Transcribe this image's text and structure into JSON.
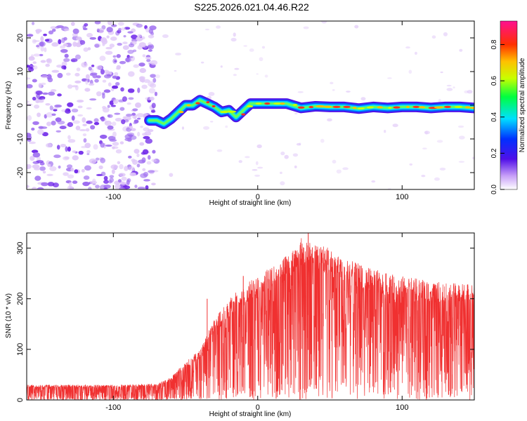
{
  "title": "S225.2026.021.04.46.R22",
  "colors": {
    "snr_line": "#f03030",
    "scatter_low": "#e0c8f8",
    "scatter_mid": "#a070f0",
    "scatter_high": "#6a20e8"
  },
  "chart_data": [
    {
      "type": "heatmap",
      "name": "spectrogram",
      "title": "S225.2026.021.04.46.R22",
      "xlabel": "Height of straight line (km)",
      "ylabel": "Frequency (Hz)",
      "xlim": [
        -160,
        150
      ],
      "ylim": [
        -25,
        25
      ],
      "xticks": [
        -100,
        0,
        100
      ],
      "yticks": [
        -20,
        -10,
        0,
        10,
        20
      ],
      "noise_region_x": [
        -160,
        -70
      ],
      "ridge": {
        "x": [
          -75,
          -70,
          -65,
          -60,
          -55,
          -50,
          -45,
          -40,
          -35,
          -30,
          -25,
          -20,
          -15,
          -10,
          -5,
          0,
          10,
          20,
          30,
          40,
          50,
          60,
          70,
          80,
          90,
          100,
          110,
          120,
          130,
          140,
          150
        ],
        "y": [
          -4.5,
          -4.5,
          -5.5,
          -4,
          -2,
          0,
          0,
          1.5,
          0.5,
          -0.5,
          -2,
          -1.5,
          -3.5,
          -1.5,
          0.5,
          0.5,
          0.5,
          0.5,
          -0.8,
          -0.3,
          -0.5,
          -0.5,
          -1,
          -0.5,
          -0.8,
          -0.5,
          -0.5,
          -0.8,
          -0.5,
          -0.5,
          -0.8
        ]
      },
      "colorbar": {
        "label": "Normalized spectral amplitude",
        "ticks": [
          "0.0",
          "0.2",
          "0.4",
          "0.6",
          "0.8"
        ],
        "range": [
          0,
          0.93
        ]
      }
    },
    {
      "type": "line",
      "name": "snr",
      "xlabel": "Height of straight line (km)",
      "ylabel": "SNR (10 * v/v)",
      "xlim": [
        -160,
        150
      ],
      "ylim": [
        0,
        330
      ],
      "xticks": [
        -100,
        0,
        100
      ],
      "yticks": [
        0,
        100,
        200,
        300
      ],
      "envelope": {
        "x": [
          -160,
          -100,
          -70,
          -60,
          -50,
          -40,
          -30,
          -20,
          -10,
          0,
          10,
          20,
          30,
          40,
          50,
          60,
          70,
          80,
          90,
          100,
          110,
          120,
          130,
          140,
          150
        ],
        "upper": [
          30,
          30,
          32,
          45,
          75,
          100,
          160,
          200,
          230,
          245,
          265,
          290,
          320,
          310,
          300,
          280,
          270,
          260,
          250,
          245,
          240,
          235,
          232,
          230,
          230
        ],
        "lower": [
          3,
          3,
          3,
          5,
          8,
          12,
          20,
          30,
          40,
          50,
          55,
          60,
          65,
          60,
          60,
          55,
          55,
          50,
          50,
          50,
          50,
          50,
          50,
          50,
          50
        ]
      },
      "peaks": [
        {
          "x": 35,
          "y": 330
        },
        {
          "x": -10,
          "y": 245
        },
        {
          "x": -35,
          "y": 200
        }
      ]
    }
  ]
}
